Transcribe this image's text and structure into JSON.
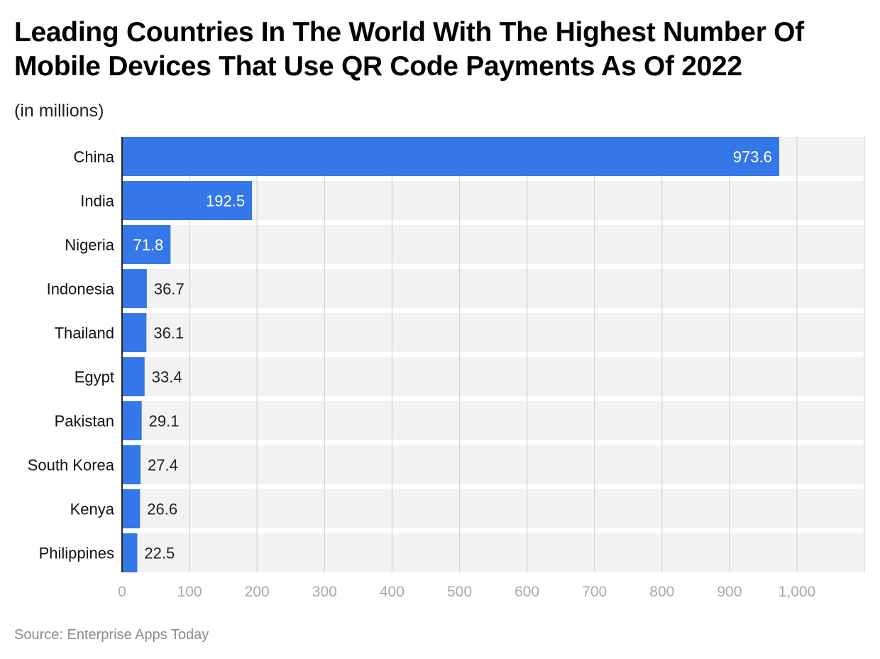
{
  "title": "Leading Countries In The World With The Highest Number Of Mobile Devices That Use QR Code Payments As Of 2022",
  "subtitle": "(in millions)",
  "source": "Source: Enterprise Apps Today",
  "colors": {
    "bar": "#3377e8",
    "band": "#f2f2f2",
    "grid": "#d4d4d4",
    "axis": "#222222",
    "tick_label": "#a8a8a8",
    "label_inside": "#ffffff",
    "label_outside": "#222222"
  },
  "chart_data": {
    "type": "bar",
    "orientation": "horizontal",
    "categories": [
      "China",
      "India",
      "Nigeria",
      "Indonesia",
      "Thailand",
      "Egypt",
      "Pakistan",
      "South Korea",
      "Kenya",
      "Philippines"
    ],
    "values": [
      973.6,
      192.5,
      71.8,
      36.7,
      36.1,
      33.4,
      29.1,
      27.4,
      26.6,
      22.5
    ],
    "value_labels": [
      "973.6",
      "192.5",
      "71.8",
      "36.7",
      "36.1",
      "33.4",
      "29.1",
      "27.4",
      "26.6",
      "22.5"
    ],
    "xlim": [
      0,
      1100
    ],
    "x_ticks": [
      0,
      100,
      200,
      300,
      400,
      500,
      600,
      700,
      800,
      900,
      1000
    ],
    "x_tick_labels": [
      "0",
      "100",
      "200",
      "300",
      "400",
      "500",
      "600",
      "700",
      "800",
      "900",
      "1,000"
    ],
    "xlabel": "",
    "ylabel": "",
    "grid": true,
    "legend": false
  }
}
